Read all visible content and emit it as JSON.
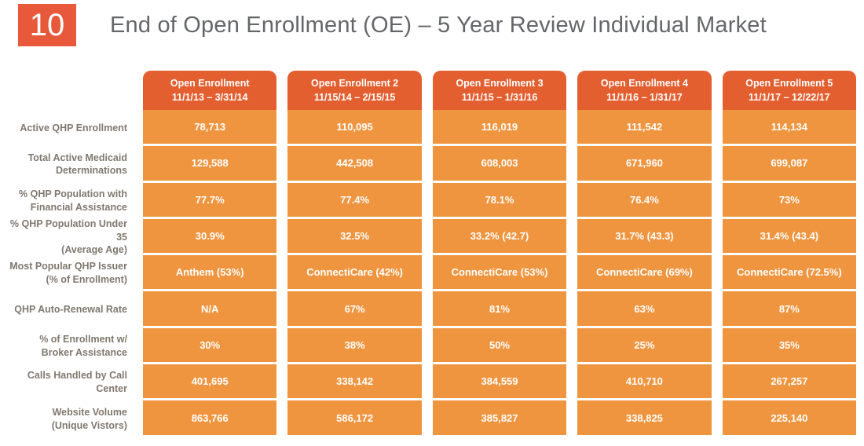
{
  "slide": {
    "badge_number": "10",
    "title": "End of Open Enrollment (OE) – 5 Year Review Individual Market"
  },
  "colors": {
    "badge_background": "#e7593a",
    "column_header_background": "#e45f30",
    "cell_background": "#f0953f",
    "title_text": "#656669",
    "row_label_text": "#80786f",
    "value_text": "#ffffff"
  },
  "table": {
    "columns": [
      {
        "title": "Open Enrollment",
        "dates": "11/1/13 – 3/31/14"
      },
      {
        "title": "Open Enrollment 2",
        "dates": "11/15/14 – 2/15/15"
      },
      {
        "title": "Open Enrollment 3",
        "dates": "11/1/15 – 1/31/16"
      },
      {
        "title": "Open Enrollment 4",
        "dates": "11/1/16 – 1/31/17"
      },
      {
        "title": "Open Enrollment 5",
        "dates": "11/1/17 – 12/22/17"
      }
    ],
    "rows": [
      {
        "label": [
          "Active QHP Enrollment"
        ],
        "values": [
          "78,713",
          "110,095",
          "116,019",
          "111,542",
          "114,134"
        ]
      },
      {
        "label": [
          "Total Active Medicaid",
          "Determinations"
        ],
        "values": [
          "129,588",
          "442,508",
          "608,003",
          "671,960",
          "699,087"
        ]
      },
      {
        "label": [
          "% QHP Population with",
          "Financial Assistance"
        ],
        "values": [
          "77.7%",
          "77.4%",
          "78.1%",
          "76.4%",
          "73%"
        ]
      },
      {
        "label": [
          "% QHP Population Under 35",
          "(Average Age)"
        ],
        "values": [
          "30.9%",
          "32.5%",
          "33.2% (42.7)",
          "31.7% (43.3)",
          "31.4% (43.4)"
        ]
      },
      {
        "label": [
          "Most Popular QHP Issuer",
          "(% of Enrollment)"
        ],
        "values": [
          "Anthem (53%)",
          "ConnectiCare (42%)",
          "ConnectiCare (53%)",
          "ConnectiCare (69%)",
          "ConnectiCare (72.5%)"
        ]
      },
      {
        "label": [
          "QHP Auto-Renewal Rate"
        ],
        "values": [
          "N/A",
          "67%",
          "81%",
          "63%",
          "87%"
        ]
      },
      {
        "label": [
          "% of Enrollment w/",
          "Broker Assistance"
        ],
        "values": [
          "30%",
          "38%",
          "50%",
          "25%",
          "35%"
        ]
      },
      {
        "label": [
          "Calls Handled by Call Center"
        ],
        "values": [
          "401,695",
          "338,142",
          "384,559",
          "410,710",
          "267,257"
        ]
      },
      {
        "label": [
          "Website Volume",
          "(Unique Vistors)"
        ],
        "values": [
          "863,766",
          "586,172",
          "385,827",
          "338,825",
          "225,140"
        ]
      }
    ]
  }
}
